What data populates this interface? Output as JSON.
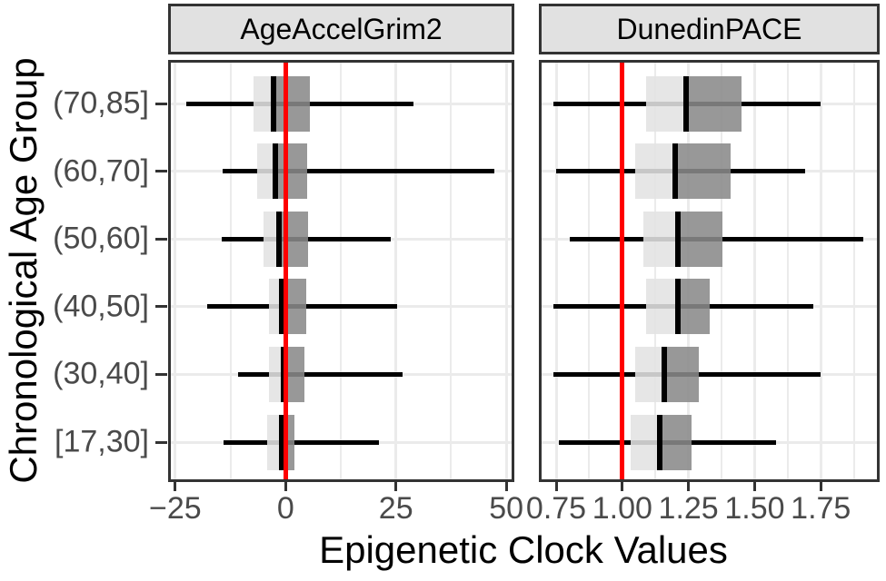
{
  "figure": {
    "y_axis_title": "Chronological Age Group",
    "x_axis_title": "Epigenetic Clock Values",
    "colors": {
      "reference_line": "#ff0000",
      "box_lower_half": "#e2e2e2",
      "box_upper_half": "#8a8a8a",
      "box_alpha": 0.88,
      "whisker": "#000000",
      "median": "#000000",
      "gridline": "#ebebeb",
      "panel_border": "#333333",
      "strip_background": "#e1e1e1",
      "tick_label": "#4a4a4a"
    }
  },
  "chart_data": [
    {
      "type": "boxplot",
      "orientation": "horizontal",
      "panel": "AgeAccelGrim2",
      "categories": [
        "(70,85]",
        "(60,70]",
        "(50,60]",
        "(40,50]",
        "(30,40]",
        "[17,30]"
      ],
      "x_range": [
        -26,
        51.2
      ],
      "x_ticks": [
        {
          "value": -25,
          "label": "−25"
        },
        {
          "value": 0,
          "label": "0"
        },
        {
          "value": 25,
          "label": "25"
        },
        {
          "value": 50,
          "label": "50"
        }
      ],
      "x_minor_ticks": [
        -12.5,
        12.5,
        37.5
      ],
      "reference_line": 0,
      "boxes": [
        {
          "category": "(70,85]",
          "whisker_low": -22.6,
          "q1": -7.2,
          "median": -2.7,
          "q3": 5.4,
          "whisker_high": 28.9
        },
        {
          "category": "(60,70]",
          "whisker_low": -14.3,
          "q1": -6.4,
          "median": -2.4,
          "q3": 4.9,
          "whisker_high": 47.3
        },
        {
          "category": "(50,60]",
          "whisker_low": -14.4,
          "q1": -5.1,
          "median": -1.5,
          "q3": 5.1,
          "whisker_high": 23.9
        },
        {
          "category": "(40,50]",
          "whisker_low": -17.7,
          "q1": -3.8,
          "median": -0.8,
          "q3": 4.7,
          "whisker_high": 25.2
        },
        {
          "category": "(30,40]",
          "whisker_low": -10.8,
          "q1": -3.7,
          "median": -0.4,
          "q3": 4.2,
          "whisker_high": 26.6
        },
        {
          "category": "[17,30]",
          "whisker_low": -14.1,
          "q1": -4.1,
          "median": -0.9,
          "q3": 1.9,
          "whisker_high": 21.1
        }
      ]
    },
    {
      "type": "boxplot",
      "orientation": "horizontal",
      "panel": "DunedinPACE",
      "categories": [
        "(70,85]",
        "(60,70]",
        "(50,60]",
        "(40,50]",
        "(30,40]",
        "[17,30]"
      ],
      "x_range": [
        0.695,
        1.962
      ],
      "x_ticks": [
        {
          "value": 0.75,
          "label": "0.75"
        },
        {
          "value": 1.0,
          "label": "1.00"
        },
        {
          "value": 1.25,
          "label": "1.25"
        },
        {
          "value": 1.5,
          "label": "1.50"
        },
        {
          "value": 1.75,
          "label": "1.75"
        }
      ],
      "x_minor_ticks": [
        0.875,
        1.125,
        1.375,
        1.625,
        1.875
      ],
      "reference_line": 1.0,
      "boxes": [
        {
          "category": "(70,85]",
          "whisker_low": 0.74,
          "q1": 1.09,
          "median": 1.24,
          "q3": 1.45,
          "whisker_high": 1.75
        },
        {
          "category": "(60,70]",
          "whisker_low": 0.75,
          "q1": 1.05,
          "median": 1.2,
          "q3": 1.41,
          "whisker_high": 1.69
        },
        {
          "category": "(50,60]",
          "whisker_low": 0.8,
          "q1": 1.08,
          "median": 1.21,
          "q3": 1.38,
          "whisker_high": 1.91
        },
        {
          "category": "(40,50]",
          "whisker_low": 0.74,
          "q1": 1.09,
          "median": 1.21,
          "q3": 1.33,
          "whisker_high": 1.72
        },
        {
          "category": "(30,40]",
          "whisker_low": 0.74,
          "q1": 1.05,
          "median": 1.16,
          "q3": 1.29,
          "whisker_high": 1.75
        },
        {
          "category": "[17,30]",
          "whisker_low": 0.76,
          "q1": 1.03,
          "median": 1.14,
          "q3": 1.26,
          "whisker_high": 1.58
        }
      ]
    }
  ]
}
